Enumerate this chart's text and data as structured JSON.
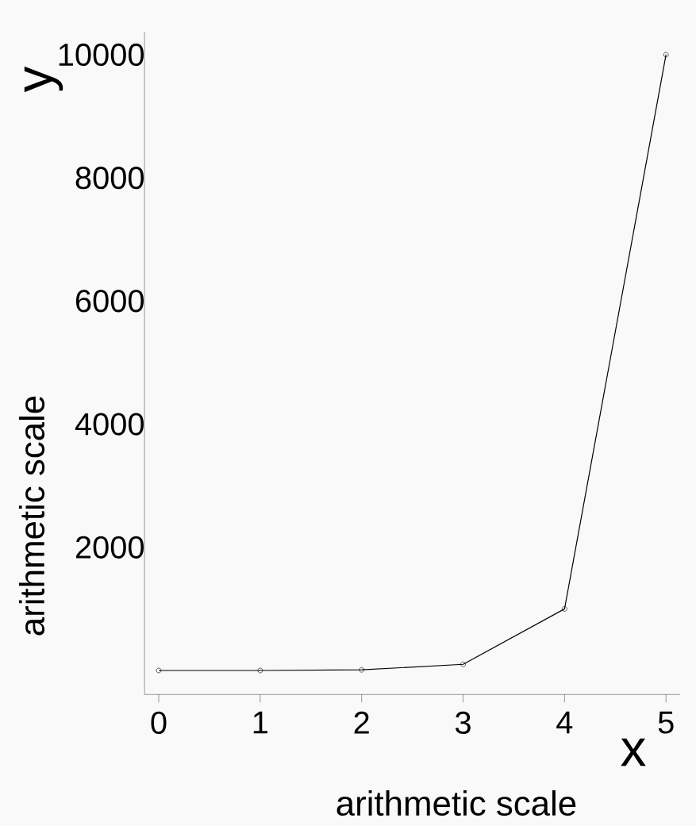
{
  "chart_data": {
    "type": "line",
    "xlabel": "x",
    "ylabel": "y",
    "annotations": [
      "arithmetic scale",
      "arithmetic scale"
    ],
    "x": [
      0,
      1,
      2,
      3,
      4,
      5
    ],
    "series": [
      {
        "color": "#000000",
        "values": [
          0,
          0,
          10,
          100,
          1000,
          10000
        ]
      }
    ],
    "xlim": [
      -0.14,
      5.14
    ],
    "ylim": [
      -390,
      10370
    ],
    "xticks": [
      0,
      1,
      2,
      3,
      4,
      5
    ],
    "yticks": [
      2000,
      4000,
      6000,
      8000,
      10000
    ],
    "marker": "circle",
    "line_style": "solid",
    "grid": false
  }
}
